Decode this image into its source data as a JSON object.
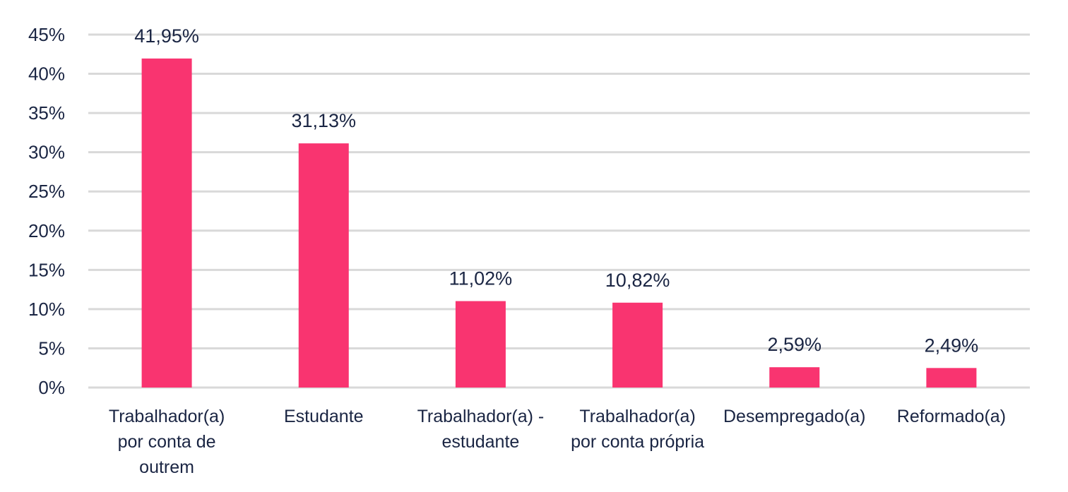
{
  "chart_data": {
    "type": "bar",
    "categories": [
      [
        "Trabalhador(a)",
        "por conta de",
        "outrem"
      ],
      [
        "Estudante"
      ],
      [
        "Trabalhador(a) -",
        "estudante"
      ],
      [
        "Trabalhador(a)",
        "por conta própria"
      ],
      [
        "Desempregado(a)"
      ],
      [
        "Reformado(a)"
      ]
    ],
    "values": [
      41.95,
      31.13,
      11.02,
      10.82,
      2.59,
      2.49
    ],
    "data_labels": [
      "41,95%",
      "31,13%",
      "11,02%",
      "10,82%",
      "2,59%",
      "2,49%"
    ],
    "y_ticks": [
      {
        "value": 0,
        "label": "0%"
      },
      {
        "value": 5,
        "label": "5%"
      },
      {
        "value": 10,
        "label": "10%"
      },
      {
        "value": 15,
        "label": "15%"
      },
      {
        "value": 20,
        "label": "20%"
      },
      {
        "value": 25,
        "label": "25%"
      },
      {
        "value": 30,
        "label": "30%"
      },
      {
        "value": 35,
        "label": "35%"
      },
      {
        "value": 40,
        "label": "40%"
      },
      {
        "value": 45,
        "label": "45%"
      }
    ],
    "ylim": [
      0,
      45
    ],
    "grid": true,
    "legend": "none",
    "bar_color": "#f93470",
    "gridline_color": "#d9d9d9",
    "text_color": "#1a2543"
  }
}
